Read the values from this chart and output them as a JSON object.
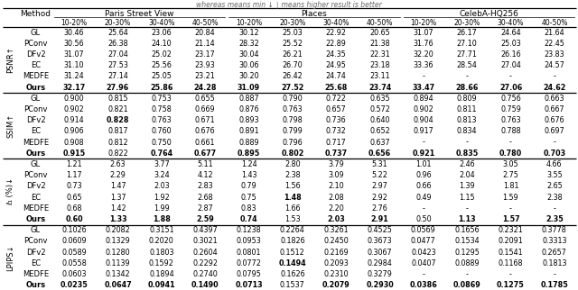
{
  "title": "whereas means min ↓ ∣ means higher result is better",
  "col_groups": [
    {
      "label": "Paris Street View",
      "cols": 4
    },
    {
      "label": "Places",
      "cols": 4
    },
    {
      "label": "CelebA-HQ256",
      "cols": 4
    }
  ],
  "sub_cols": [
    "10-20%",
    "20-30%",
    "30-40%",
    "40-50%"
  ],
  "row_groups": [
    {
      "metric": "PSNR↑",
      "rows": [
        {
          "method": "GL",
          "vals": [
            "30.46",
            "25.64",
            "23.06",
            "20.84",
            "30.12",
            "25.03",
            "22.92",
            "20.65",
            "31.07",
            "26.17",
            "24.64",
            "21.64"
          ],
          "bold": []
        },
        {
          "method": "PConv",
          "vals": [
            "30.56",
            "26.38",
            "24.10",
            "21.14",
            "28.32",
            "25.52",
            "22.89",
            "21.38",
            "31.76",
            "27.10",
            "25.03",
            "22.45"
          ],
          "bold": []
        },
        {
          "method": "DFv2",
          "vals": [
            "31.07",
            "27.04",
            "25.02",
            "23.17",
            "30.04",
            "26.21",
            "24.35",
            "22.31",
            "32.20",
            "27.71",
            "26.16",
            "23.83"
          ],
          "bold": []
        },
        {
          "method": "EC",
          "vals": [
            "31.10",
            "27.53",
            "25.56",
            "23.93",
            "30.06",
            "26.70",
            "24.95",
            "23.18",
            "33.36",
            "28.54",
            "27.04",
            "24.57"
          ],
          "bold": []
        },
        {
          "method": "MEDFE",
          "vals": [
            "31.24",
            "27.14",
            "25.05",
            "23.21",
            "30.20",
            "26.42",
            "24.74",
            "23.11",
            "-",
            "-",
            "-",
            "-"
          ],
          "bold": []
        },
        {
          "method": "Ours",
          "vals": [
            "32.17",
            "27.96",
            "25.86",
            "24.28",
            "31.09",
            "27.52",
            "25.68",
            "23.74",
            "33.47",
            "28.66",
            "27.06",
            "24.62"
          ],
          "bold": [
            0,
            1,
            2,
            3,
            4,
            5,
            6,
            7,
            8,
            9,
            10,
            11
          ]
        }
      ]
    },
    {
      "metric": "SSIM↑",
      "rows": [
        {
          "method": "GL",
          "vals": [
            "0.900",
            "0.815",
            "0.753",
            "0.655",
            "0.887",
            "0.790",
            "0.722",
            "0.635",
            "0.894",
            "0.809",
            "0.756",
            "0.663"
          ],
          "bold": []
        },
        {
          "method": "PConv",
          "vals": [
            "0.902",
            "0.821",
            "0.758",
            "0.669",
            "0.876",
            "0.763",
            "0.657",
            "0.572",
            "0.902",
            "0.811",
            "0.759",
            "0.667"
          ],
          "bold": []
        },
        {
          "method": "DFv2",
          "vals": [
            "0.914",
            "0.828",
            "0.763",
            "0.671",
            "0.893",
            "0.798",
            "0.736",
            "0.640",
            "0.904",
            "0.813",
            "0.763",
            "0.676"
          ],
          "bold": [
            1
          ]
        },
        {
          "method": "EC",
          "vals": [
            "0.906",
            "0.817",
            "0.760",
            "0.676",
            "0.891",
            "0.799",
            "0.732",
            "0.652",
            "0.917",
            "0.834",
            "0.788",
            "0.697"
          ],
          "bold": []
        },
        {
          "method": "MEDFE",
          "vals": [
            "0.908",
            "0.812",
            "0.750",
            "0.661",
            "0.889",
            "0.796",
            "0.717",
            "0.637",
            "-",
            "-",
            "-",
            "-"
          ],
          "bold": []
        },
        {
          "method": "Ours",
          "vals": [
            "0.915",
            "0.822",
            "0.764",
            "0.677",
            "0.895",
            "0.802",
            "0.737",
            "0.656",
            "0.921",
            "0.835",
            "0.780",
            "0.703"
          ],
          "bold": [
            0,
            2,
            3,
            4,
            5,
            6,
            7,
            8,
            9,
            10,
            11
          ]
        }
      ]
    },
    {
      "metric": "ℓ₁ (%)↓",
      "rows": [
        {
          "method": "GL",
          "vals": [
            "1.21",
            "2.63",
            "3.77",
            "5.11",
            "1.24",
            "2.80",
            "3.79",
            "5.31",
            "1.01",
            "2.46",
            "3.05",
            "4.66"
          ],
          "bold": []
        },
        {
          "method": "PConv",
          "vals": [
            "1.17",
            "2.29",
            "3.24",
            "4.12",
            "1.43",
            "2.38",
            "3.09",
            "5.22",
            "0.96",
            "2.04",
            "2.75",
            "3.55"
          ],
          "bold": []
        },
        {
          "method": "DFv2",
          "vals": [
            "0.73",
            "1.47",
            "2.03",
            "2.83",
            "0.79",
            "1.56",
            "2.10",
            "2.97",
            "0.66",
            "1.39",
            "1.81",
            "2.65"
          ],
          "bold": []
        },
        {
          "method": "EC",
          "vals": [
            "0.65",
            "1.37",
            "1.92",
            "2.68",
            "0.75",
            "1.48",
            "2.08",
            "2.92",
            "0.49",
            "1.15",
            "1.59",
            "2.38"
          ],
          "bold": [
            5
          ]
        },
        {
          "method": "MEDFE",
          "vals": [
            "0.68",
            "1.42",
            "1.99",
            "2.87",
            "0.83",
            "1.66",
            "2.20",
            "2.76",
            "-",
            "-",
            "-",
            "-"
          ],
          "bold": []
        },
        {
          "method": "Ours",
          "vals": [
            "0.60",
            "1.33",
            "1.88",
            "2.59",
            "0.74",
            "1.53",
            "2.03",
            "2.91",
            "0.50",
            "1.13",
            "1.57",
            "2.35"
          ],
          "bold": [
            0,
            1,
            2,
            3,
            4,
            6,
            7,
            9,
            10,
            11
          ]
        }
      ]
    },
    {
      "metric": "LPIPS↓",
      "rows": [
        {
          "method": "GL",
          "vals": [
            "0.1026",
            "0.2082",
            "0.3151",
            "0.4397",
            "0.1238",
            "0.2264",
            "0.3261",
            "0.4525",
            "0.0569",
            "0.1656",
            "0.2321",
            "0.3778"
          ],
          "bold": []
        },
        {
          "method": "PConv",
          "vals": [
            "0.0609",
            "0.1329",
            "0.2020",
            "0.3021",
            "0.0953",
            "0.1826",
            "0.2450",
            "0.3673",
            "0.0477",
            "0.1534",
            "0.2091",
            "0.3313"
          ],
          "bold": []
        },
        {
          "method": "DFv2",
          "vals": [
            "0.0589",
            "0.1280",
            "0.1803",
            "0.2604",
            "0.0801",
            "0.1512",
            "0.2169",
            "0.3067",
            "0.0423",
            "0.1295",
            "0.1541",
            "0.2657"
          ],
          "bold": []
        },
        {
          "method": "EC",
          "vals": [
            "0.0558",
            "0.1139",
            "0.1592",
            "0.2292",
            "0.0772",
            "0.1494",
            "0.2093",
            "0.2984",
            "0.0407",
            "0.0889",
            "0.1168",
            "0.1813"
          ],
          "bold": [
            5
          ]
        },
        {
          "method": "MEDFE",
          "vals": [
            "0.0603",
            "0.1342",
            "0.1894",
            "0.2740",
            "0.0795",
            "0.1626",
            "0.2310",
            "0.3279",
            "-",
            "-",
            "-",
            "-"
          ],
          "bold": []
        },
        {
          "method": "Ours",
          "vals": [
            "0.0235",
            "0.0647",
            "0.0941",
            "0.1490",
            "0.0713",
            "0.1537",
            "0.2079",
            "0.2930",
            "0.0386",
            "0.0869",
            "0.1275",
            "0.1785"
          ],
          "bold": [
            0,
            1,
            2,
            3,
            4,
            6,
            7,
            8,
            9,
            10,
            11
          ]
        }
      ]
    }
  ],
  "bg_color": "#ffffff"
}
